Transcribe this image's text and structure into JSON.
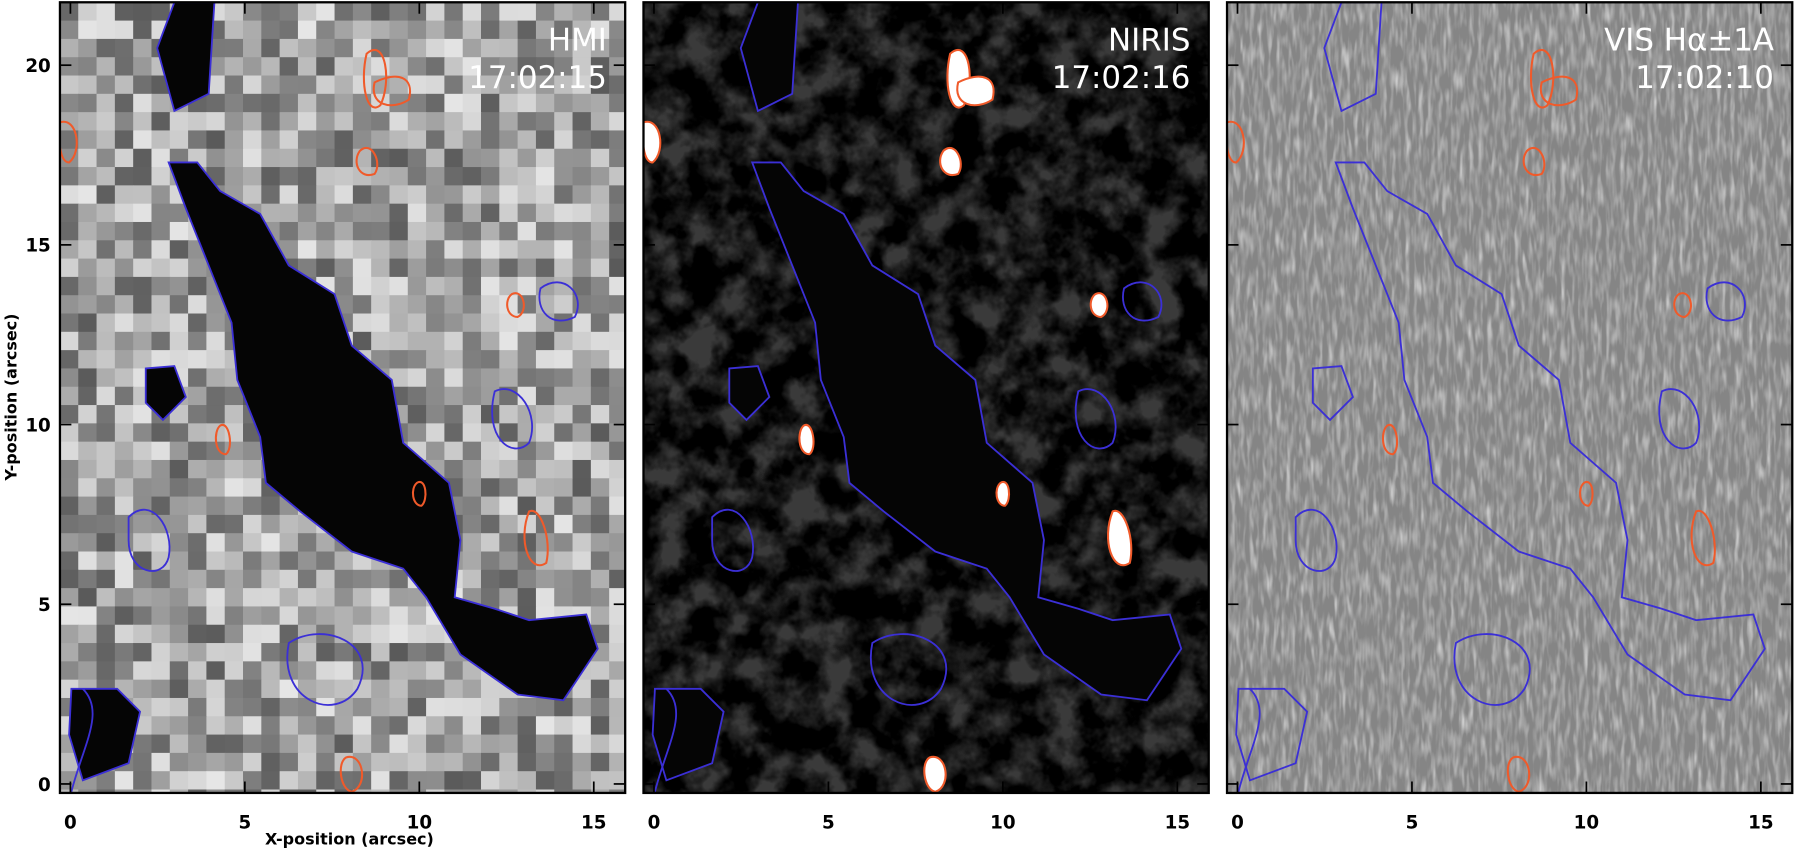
{
  "chart_data": [
    {
      "type": "image",
      "title": "HMI",
      "subtitle": "17:02:15",
      "xlabel": "X-position (arcsec)",
      "ylabel": "Y-position (arcsec)",
      "xlim": [
        -0.3,
        15.9
      ],
      "ylim": [
        -0.25,
        21.75
      ],
      "xticks": [
        0,
        5,
        10,
        15
      ],
      "yticks": [
        0,
        5,
        10,
        15,
        20
      ],
      "ytick_labels": true,
      "texture": "pixelated"
    },
    {
      "type": "image",
      "title": "NIRIS",
      "subtitle": "17:02:16",
      "xlim": [
        -0.3,
        15.9
      ],
      "ylim": [
        -0.25,
        21.75
      ],
      "xticks": [
        0,
        5,
        10,
        15
      ],
      "yticks": [
        0,
        5,
        10,
        15,
        20
      ],
      "ytick_labels": false,
      "texture": "smooth"
    },
    {
      "type": "image",
      "title": "VIS Hα±1A",
      "subtitle": "17:02:10",
      "xlim": [
        -0.3,
        15.9
      ],
      "ylim": [
        -0.25,
        21.75
      ],
      "xticks": [
        0,
        5,
        10,
        15
      ],
      "yticks": [
        0,
        5,
        10,
        15,
        20
      ],
      "ytick_labels": false,
      "texture": "fine"
    }
  ]
}
